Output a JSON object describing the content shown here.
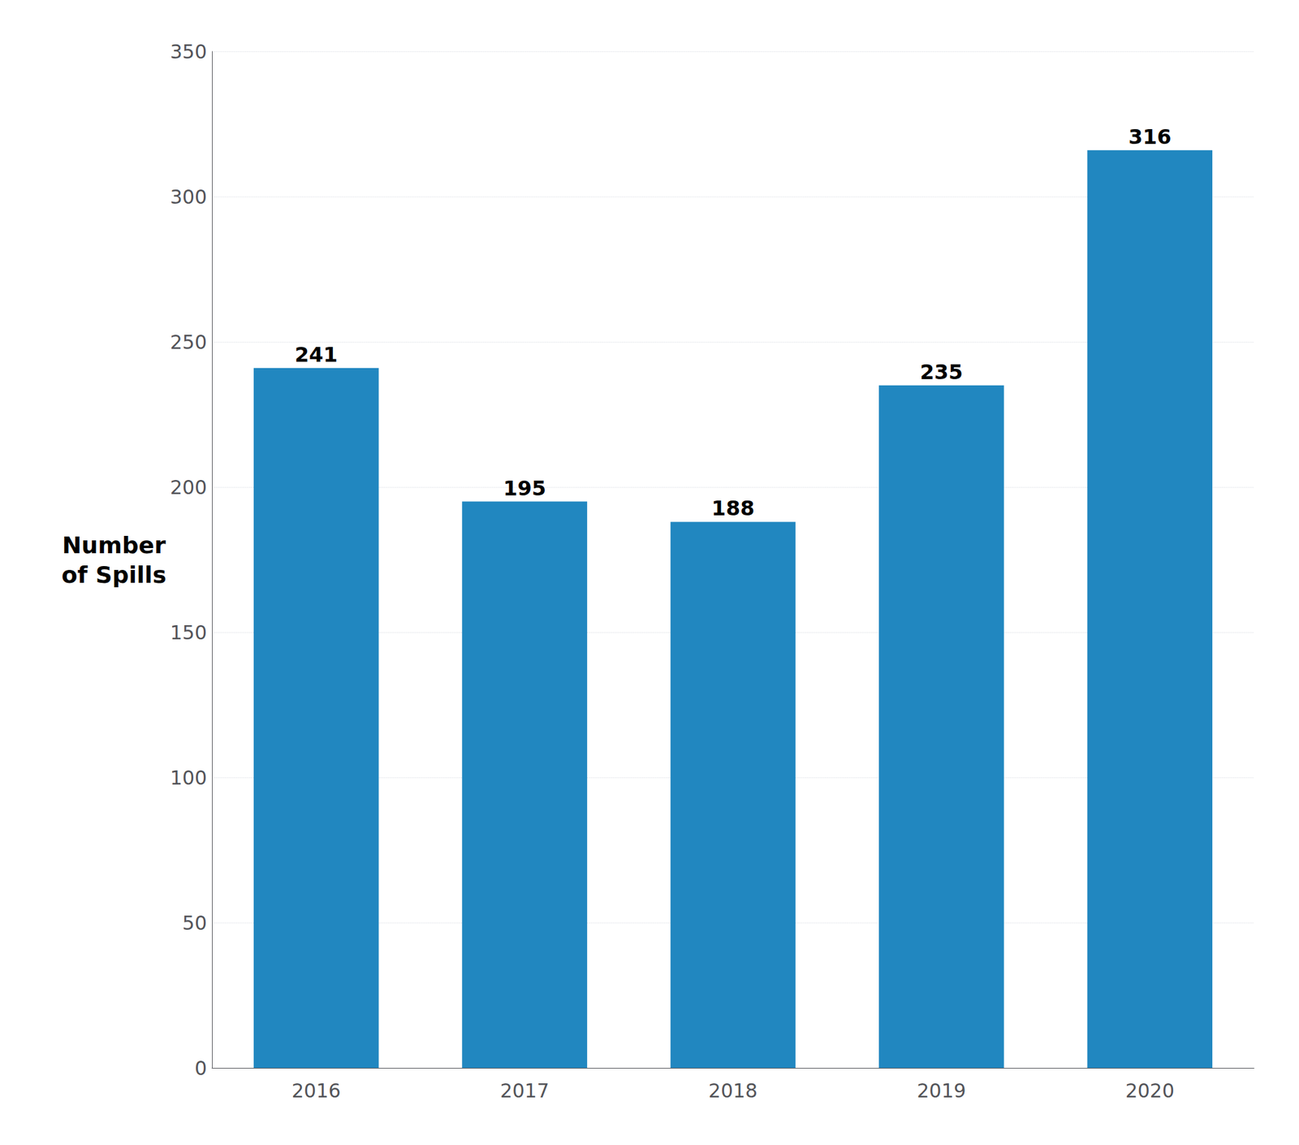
{
  "chart_data": {
    "type": "bar",
    "categories": [
      "2016",
      "2017",
      "2018",
      "2019",
      "2020"
    ],
    "values": [
      241,
      195,
      188,
      235,
      316
    ],
    "color": "#2187C0",
    "ylabel": "Number\nof Spills",
    "ylim": [
      0,
      350
    ],
    "yticks": [
      0,
      50,
      100,
      150,
      200,
      250,
      300,
      350
    ],
    "grid": true,
    "data_labels": true
  }
}
